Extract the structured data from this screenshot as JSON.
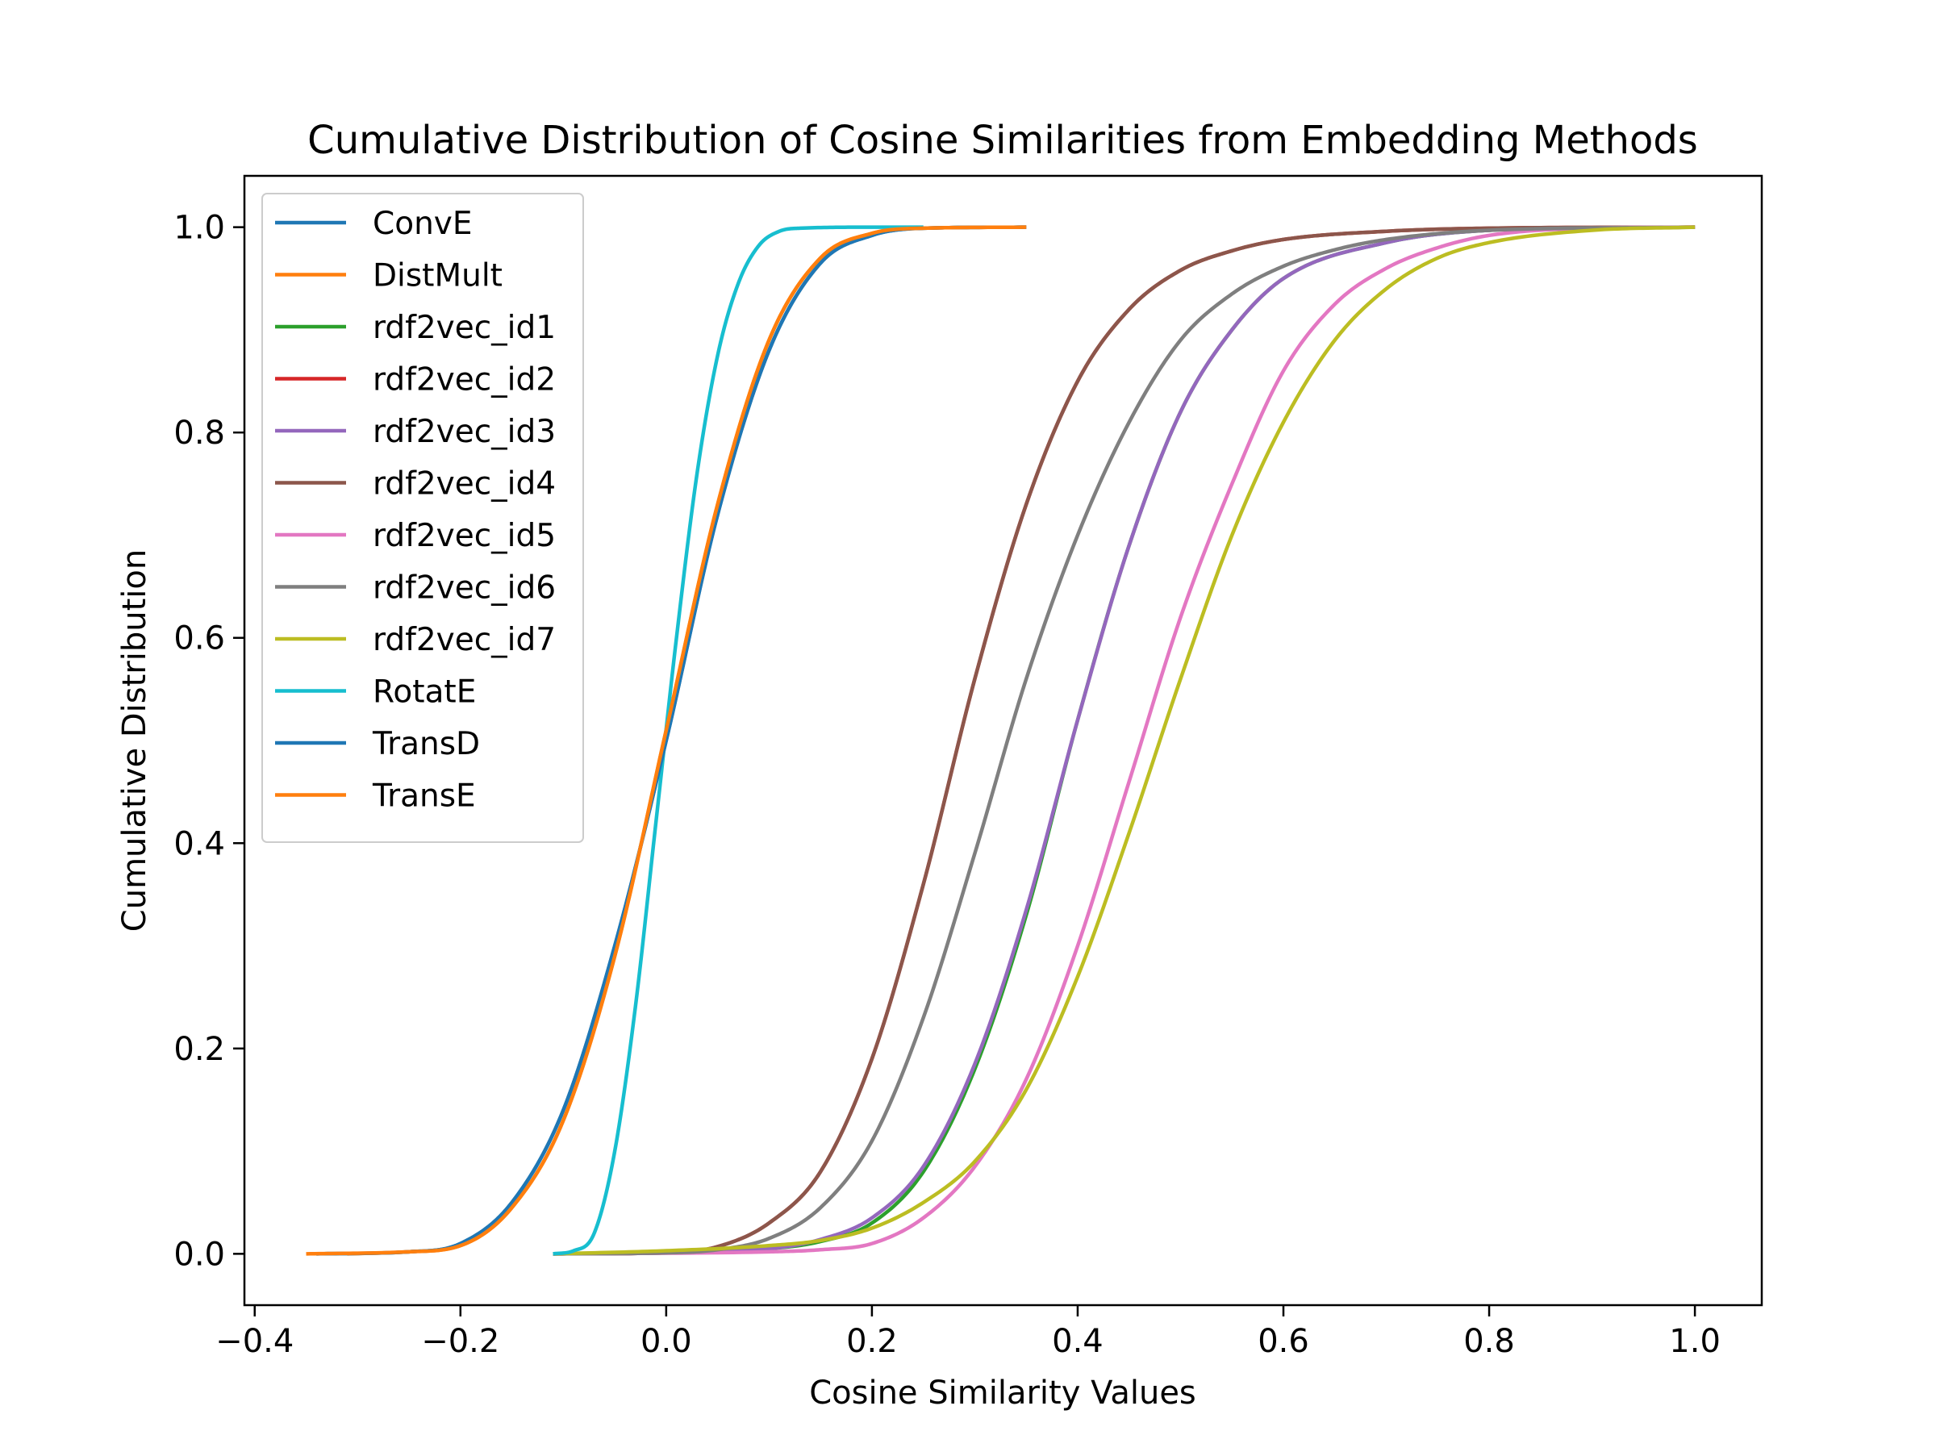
{
  "chart_data": {
    "type": "line",
    "title": "Cumulative Distribution of Cosine Similarities from Embedding Methods",
    "xlabel": "Cosine Similarity Values",
    "ylabel": "Cumulative Distribution",
    "xlim": [
      -0.41,
      1.065
    ],
    "ylim": [
      -0.05,
      1.05
    ],
    "xticks": [
      -0.4,
      -0.2,
      0.0,
      0.2,
      0.4,
      0.6,
      0.8,
      1.0
    ],
    "xtick_labels": [
      "−0.4",
      "−0.2",
      "0.0",
      "0.2",
      "0.4",
      "0.6",
      "0.8",
      "1.0"
    ],
    "yticks": [
      0.0,
      0.2,
      0.4,
      0.6,
      0.8,
      1.0
    ],
    "ytick_labels": [
      "0.0",
      "0.2",
      "0.4",
      "0.6",
      "0.8",
      "1.0"
    ],
    "grid": false,
    "legend_position": "top-left",
    "series": [
      {
        "name": "ConvE",
        "color": "#1f77b4",
        "points": [
          [
            -0.34,
            0.0
          ],
          [
            -0.25,
            0.002
          ],
          [
            -0.2,
            0.01
          ],
          [
            -0.15,
            0.05
          ],
          [
            -0.1,
            0.14
          ],
          [
            -0.05,
            0.3
          ],
          [
            0.0,
            0.5
          ],
          [
            0.05,
            0.72
          ],
          [
            0.1,
            0.88
          ],
          [
            0.15,
            0.965
          ],
          [
            0.2,
            0.992
          ],
          [
            0.25,
            0.999
          ],
          [
            0.35,
            1.0
          ]
        ]
      },
      {
        "name": "DistMult",
        "color": "#ff7f0e",
        "points": [
          [
            -0.31,
            0.0
          ],
          [
            -0.25,
            0.002
          ],
          [
            -0.2,
            0.008
          ],
          [
            -0.15,
            0.045
          ],
          [
            -0.1,
            0.13
          ],
          [
            -0.05,
            0.29
          ],
          [
            0.0,
            0.51
          ],
          [
            0.05,
            0.73
          ],
          [
            0.1,
            0.89
          ],
          [
            0.15,
            0.97
          ],
          [
            0.2,
            0.994
          ],
          [
            0.25,
            0.999
          ],
          [
            0.35,
            1.0
          ]
        ]
      },
      {
        "name": "rdf2vec_id1",
        "color": "#2ca02c",
        "points": [
          [
            -0.11,
            0.0
          ],
          [
            0.0,
            0.001
          ],
          [
            0.1,
            0.005
          ],
          [
            0.15,
            0.012
          ],
          [
            0.2,
            0.03
          ],
          [
            0.25,
            0.08
          ],
          [
            0.3,
            0.18
          ],
          [
            0.35,
            0.33
          ],
          [
            0.4,
            0.52
          ],
          [
            0.45,
            0.69
          ],
          [
            0.5,
            0.82
          ],
          [
            0.55,
            0.9
          ],
          [
            0.6,
            0.95
          ],
          [
            0.7,
            0.985
          ],
          [
            0.8,
            0.997
          ],
          [
            0.9,
            0.999
          ],
          [
            1.0,
            1.0
          ]
        ]
      },
      {
        "name": "rdf2vec_id2",
        "color": "#d62728",
        "points": [
          [
            -0.11,
            0.0
          ],
          [
            0.0,
            0.001
          ],
          [
            0.05,
            0.007
          ],
          [
            0.1,
            0.03
          ],
          [
            0.15,
            0.08
          ],
          [
            0.2,
            0.19
          ],
          [
            0.25,
            0.36
          ],
          [
            0.3,
            0.56
          ],
          [
            0.35,
            0.73
          ],
          [
            0.4,
            0.85
          ],
          [
            0.45,
            0.92
          ],
          [
            0.5,
            0.958
          ],
          [
            0.55,
            0.977
          ],
          [
            0.6,
            0.988
          ],
          [
            0.7,
            0.996
          ],
          [
            0.8,
            0.999
          ],
          [
            1.0,
            1.0
          ]
        ]
      },
      {
        "name": "rdf2vec_id3",
        "color": "#9467bd",
        "points": [
          [
            -0.11,
            0.0
          ],
          [
            0.0,
            0.001
          ],
          [
            0.1,
            0.005
          ],
          [
            0.15,
            0.014
          ],
          [
            0.2,
            0.035
          ],
          [
            0.25,
            0.085
          ],
          [
            0.3,
            0.185
          ],
          [
            0.35,
            0.335
          ],
          [
            0.4,
            0.52
          ],
          [
            0.45,
            0.69
          ],
          [
            0.5,
            0.82
          ],
          [
            0.55,
            0.9
          ],
          [
            0.6,
            0.95
          ],
          [
            0.7,
            0.985
          ],
          [
            0.8,
            0.997
          ],
          [
            0.9,
            0.999
          ],
          [
            1.0,
            1.0
          ]
        ]
      },
      {
        "name": "rdf2vec_id4",
        "color": "#8c564b",
        "points": [
          [
            -0.11,
            0.0
          ],
          [
            0.0,
            0.001
          ],
          [
            0.05,
            0.007
          ],
          [
            0.1,
            0.03
          ],
          [
            0.15,
            0.08
          ],
          [
            0.2,
            0.19
          ],
          [
            0.25,
            0.36
          ],
          [
            0.3,
            0.56
          ],
          [
            0.35,
            0.73
          ],
          [
            0.4,
            0.85
          ],
          [
            0.45,
            0.92
          ],
          [
            0.5,
            0.958
          ],
          [
            0.55,
            0.977
          ],
          [
            0.6,
            0.988
          ],
          [
            0.7,
            0.996
          ],
          [
            0.8,
            0.999
          ],
          [
            1.0,
            1.0
          ]
        ]
      },
      {
        "name": "rdf2vec_id5",
        "color": "#e377c2",
        "points": [
          [
            -0.11,
            0.0
          ],
          [
            0.1,
            0.002
          ],
          [
            0.15,
            0.004
          ],
          [
            0.2,
            0.01
          ],
          [
            0.25,
            0.035
          ],
          [
            0.3,
            0.085
          ],
          [
            0.35,
            0.17
          ],
          [
            0.4,
            0.3
          ],
          [
            0.45,
            0.46
          ],
          [
            0.5,
            0.62
          ],
          [
            0.55,
            0.75
          ],
          [
            0.6,
            0.86
          ],
          [
            0.65,
            0.925
          ],
          [
            0.7,
            0.96
          ],
          [
            0.75,
            0.98
          ],
          [
            0.8,
            0.992
          ],
          [
            0.9,
            0.999
          ],
          [
            1.0,
            1.0
          ]
        ]
      },
      {
        "name": "rdf2vec_id6",
        "color": "#7f7f7f",
        "points": [
          [
            -0.11,
            0.0
          ],
          [
            0.0,
            0.001
          ],
          [
            0.05,
            0.004
          ],
          [
            0.1,
            0.015
          ],
          [
            0.15,
            0.045
          ],
          [
            0.2,
            0.11
          ],
          [
            0.25,
            0.23
          ],
          [
            0.3,
            0.39
          ],
          [
            0.35,
            0.56
          ],
          [
            0.4,
            0.7
          ],
          [
            0.45,
            0.81
          ],
          [
            0.5,
            0.89
          ],
          [
            0.55,
            0.935
          ],
          [
            0.6,
            0.962
          ],
          [
            0.65,
            0.978
          ],
          [
            0.7,
            0.988
          ],
          [
            0.8,
            0.997
          ],
          [
            1.0,
            1.0
          ]
        ]
      },
      {
        "name": "rdf2vec_id7",
        "color": "#bcbd22",
        "points": [
          [
            -0.11,
            0.0
          ],
          [
            0.0,
            0.003
          ],
          [
            0.1,
            0.008
          ],
          [
            0.15,
            0.013
          ],
          [
            0.2,
            0.025
          ],
          [
            0.25,
            0.05
          ],
          [
            0.3,
            0.09
          ],
          [
            0.35,
            0.16
          ],
          [
            0.4,
            0.27
          ],
          [
            0.45,
            0.41
          ],
          [
            0.5,
            0.56
          ],
          [
            0.55,
            0.7
          ],
          [
            0.6,
            0.81
          ],
          [
            0.65,
            0.89
          ],
          [
            0.7,
            0.94
          ],
          [
            0.75,
            0.97
          ],
          [
            0.8,
            0.985
          ],
          [
            0.9,
            0.997
          ],
          [
            1.0,
            1.0
          ]
        ]
      },
      {
        "name": "RotatE",
        "color": "#17becf",
        "points": [
          [
            -0.11,
            0.0
          ],
          [
            -0.09,
            0.003
          ],
          [
            -0.07,
            0.02
          ],
          [
            -0.05,
            0.1
          ],
          [
            -0.03,
            0.24
          ],
          [
            -0.01,
            0.42
          ],
          [
            0.01,
            0.6
          ],
          [
            0.03,
            0.76
          ],
          [
            0.05,
            0.875
          ],
          [
            0.07,
            0.945
          ],
          [
            0.09,
            0.982
          ],
          [
            0.11,
            0.996
          ],
          [
            0.13,
            0.999
          ],
          [
            0.2,
            1.0
          ],
          [
            0.25,
            1.0
          ]
        ]
      },
      {
        "name": "TransD",
        "color": "#1f77b4",
        "points": [
          [
            -0.34,
            0.0
          ],
          [
            -0.25,
            0.002
          ],
          [
            -0.2,
            0.01
          ],
          [
            -0.15,
            0.05
          ],
          [
            -0.1,
            0.14
          ],
          [
            -0.05,
            0.3
          ],
          [
            0.0,
            0.5
          ],
          [
            0.05,
            0.72
          ],
          [
            0.1,
            0.88
          ],
          [
            0.15,
            0.965
          ],
          [
            0.2,
            0.992
          ],
          [
            0.25,
            0.999
          ],
          [
            0.35,
            1.0
          ]
        ]
      },
      {
        "name": "TransE",
        "color": "#ff7f0e",
        "points": [
          [
            -0.35,
            0.0
          ],
          [
            -0.25,
            0.002
          ],
          [
            -0.2,
            0.008
          ],
          [
            -0.15,
            0.045
          ],
          [
            -0.1,
            0.13
          ],
          [
            -0.05,
            0.29
          ],
          [
            0.0,
            0.51
          ],
          [
            0.05,
            0.73
          ],
          [
            0.1,
            0.89
          ],
          [
            0.15,
            0.97
          ],
          [
            0.2,
            0.994
          ],
          [
            0.25,
            0.999
          ],
          [
            0.35,
            1.0
          ]
        ]
      }
    ]
  }
}
